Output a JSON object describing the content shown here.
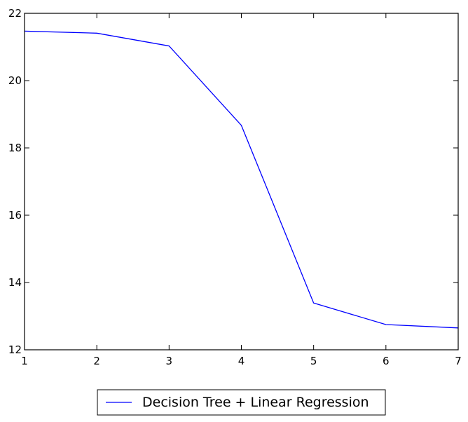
{
  "chart_data": {
    "type": "line",
    "title": "",
    "xlabel": "",
    "ylabel": "",
    "xlim": [
      1,
      7
    ],
    "ylim": [
      12,
      22
    ],
    "xticks": [
      1,
      2,
      3,
      4,
      5,
      6,
      7
    ],
    "yticks": [
      12,
      14,
      16,
      18,
      20,
      22
    ],
    "grid": false,
    "legend_position": "below",
    "series": [
      {
        "name": "Decision Tree + Linear Regression",
        "color": "#0000ff",
        "x": [
          1,
          2,
          3,
          4,
          5,
          6,
          7
        ],
        "y": [
          21.47,
          21.41,
          21.03,
          18.67,
          13.39,
          12.75,
          12.65
        ]
      }
    ]
  }
}
